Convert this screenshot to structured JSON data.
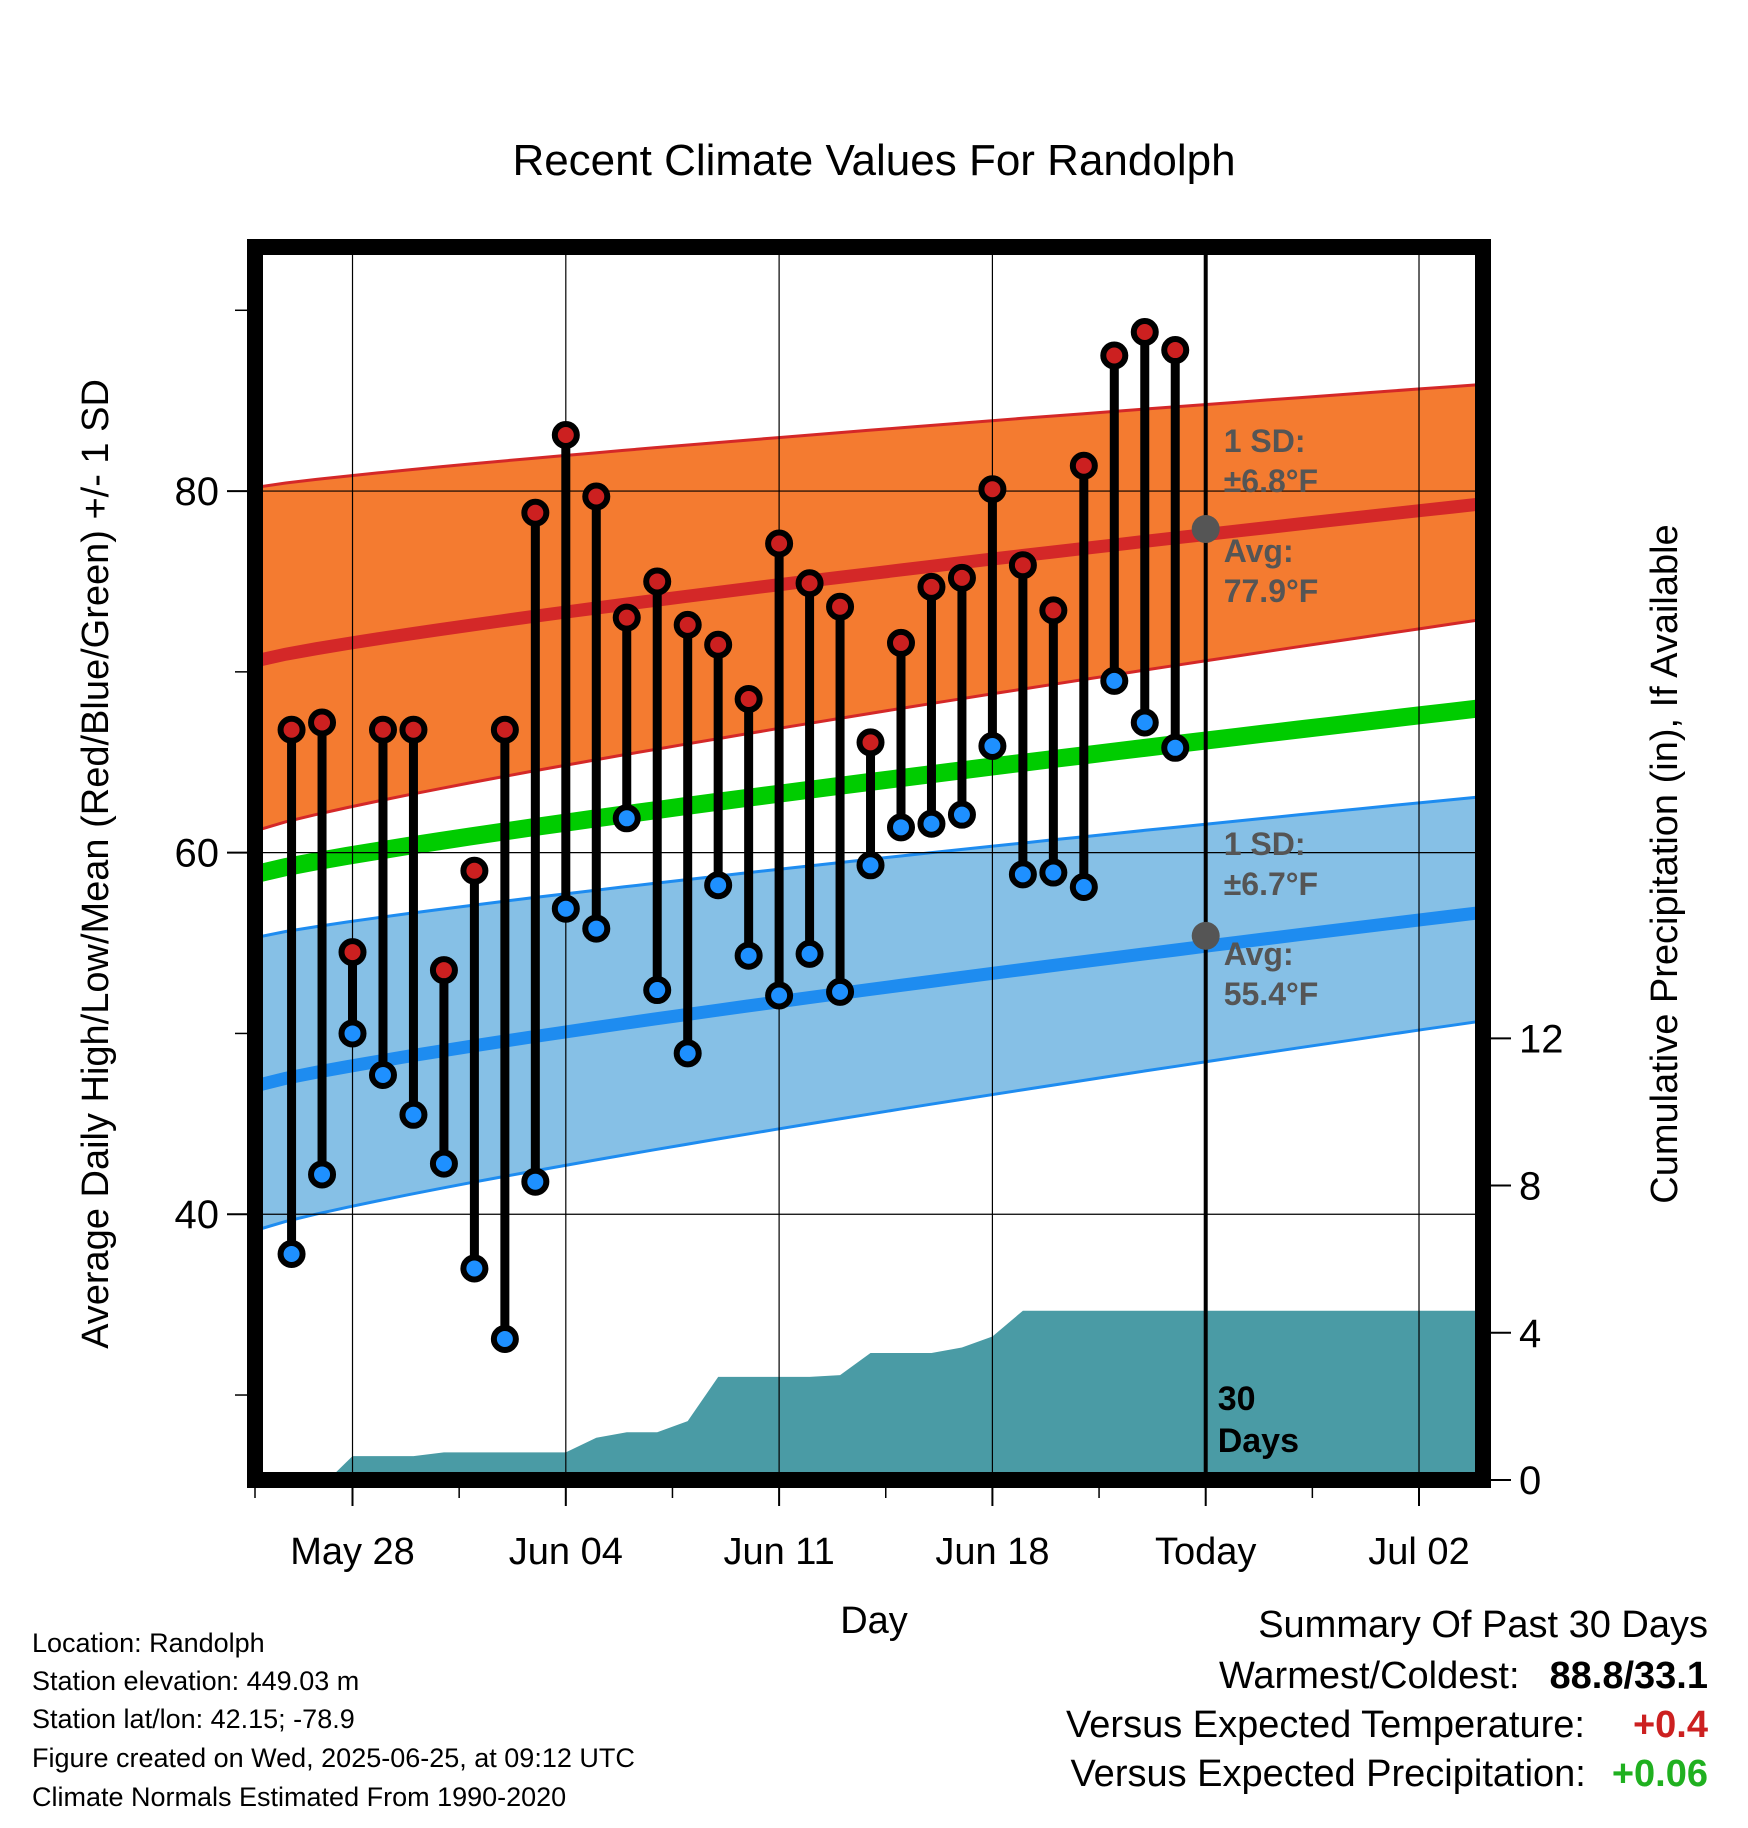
{
  "chart_data": {
    "type": "line",
    "title": "Recent Climate Values For Randolph",
    "xlabel": "Day",
    "ylabel": "Average Daily High/Low/Mean (Red/Blue/Green) +/- 1 SD",
    "y2label": "Cumulative Precipitation (in), If Available",
    "x_tick_labels": [
      "May 28",
      "Jun 04",
      "Jun 11",
      "Jun 18",
      "Today",
      "Jul 02"
    ],
    "x_tick_days": [
      2,
      9,
      16,
      23,
      30,
      37
    ],
    "y_ticks": [
      40,
      60,
      80
    ],
    "y2_ticks": [
      0,
      4,
      8,
      12
    ],
    "xlim_days": [
      -1.2,
      39.1
    ],
    "ylim": [
      25.3,
      93.5
    ],
    "y2lim": [
      0,
      33.5
    ],
    "today_day": 30,
    "today_label": [
      "30",
      "Days"
    ],
    "normals": {
      "days": [
        -1.2,
        39.1
      ],
      "high_avg": [
        70.6,
        79.3
      ],
      "high_sd_upper": [
        80.2,
        85.9
      ],
      "high_sd_lower": [
        61.2,
        72.9
      ],
      "low_avg": [
        47.1,
        56.7
      ],
      "low_sd_upper": [
        55.3,
        63.1
      ],
      "low_sd_lower": [
        39.1,
        50.7
      ],
      "mean_avg": [
        58.8,
        68.0
      ]
    },
    "annotations": {
      "high_sd": [
        "1 SD:",
        "±6.8°F"
      ],
      "high_avg": [
        "Avg:",
        "77.9°F"
      ],
      "high_avg_value": 77.9,
      "low_sd": [
        "1 SD:",
        "±6.7°F"
      ],
      "low_avg": [
        "Avg:",
        "55.4°F"
      ],
      "low_avg_value": 55.4
    },
    "series": [
      {
        "name": "High",
        "color": "#cc2020",
        "days": [
          0,
          1,
          2,
          3,
          4,
          5,
          6,
          7,
          8,
          9,
          10,
          11,
          12,
          13,
          14,
          15,
          16,
          17,
          18,
          19,
          20,
          21,
          22,
          23,
          24,
          25,
          26,
          27,
          28,
          29
        ],
        "values": [
          66.8,
          67.2,
          54.5,
          66.8,
          66.8,
          53.5,
          59.0,
          66.8,
          78.8,
          83.1,
          79.7,
          73.0,
          75.0,
          72.6,
          71.5,
          68.5,
          77.1,
          74.9,
          73.6,
          66.1,
          71.6,
          74.7,
          75.2,
          80.1,
          75.9,
          73.4,
          81.4,
          87.5,
          88.8,
          87.8
        ]
      },
      {
        "name": "Low",
        "color": "#1e90ff",
        "days": [
          0,
          1,
          2,
          3,
          4,
          5,
          6,
          7,
          8,
          9,
          10,
          11,
          12,
          13,
          14,
          15,
          16,
          17,
          18,
          19,
          20,
          21,
          22,
          23,
          24,
          25,
          26,
          27,
          28,
          29
        ],
        "values": [
          37.8,
          42.2,
          50.0,
          47.7,
          45.5,
          42.8,
          37.0,
          33.1,
          41.8,
          56.9,
          55.8,
          61.9,
          52.4,
          48.9,
          58.2,
          54.3,
          52.1,
          54.4,
          52.3,
          59.3,
          61.4,
          61.6,
          62.1,
          65.9,
          58.8,
          58.9,
          58.1,
          69.5,
          67.2,
          65.8
        ]
      }
    ],
    "precipitation": {
      "name": "Cumulative Precipitation",
      "color": "#4a9ba5",
      "days": [
        1.2,
        2.0,
        3.0,
        4.0,
        5.0,
        6.0,
        7.0,
        8.0,
        9.0,
        10.0,
        11.0,
        12.0,
        13.0,
        14.0,
        15.0,
        16.0,
        17.0,
        18.0,
        19.0,
        20.0,
        21.0,
        22.0,
        23.0,
        24.0,
        25.0,
        30.0,
        39.1
      ],
      "values": [
        0.0,
        0.65,
        0.65,
        0.65,
        0.75,
        0.75,
        0.75,
        0.75,
        0.75,
        1.15,
        1.3,
        1.3,
        1.6,
        2.8,
        2.8,
        2.8,
        2.8,
        2.85,
        3.45,
        3.45,
        3.45,
        3.6,
        3.9,
        4.6,
        4.6,
        4.6,
        4.6
      ]
    }
  },
  "footer": {
    "location": "Location: Randolph",
    "elevation": "Station elevation: 449.03 m",
    "latlon": "Station lat/lon: 42.15; -78.9",
    "created": "Figure created on Wed, 2025-06-25, at 09:12 UTC",
    "normals": "Climate Normals Estimated From 1990-2020"
  },
  "summary": {
    "title": "Summary Of Past 30 Days",
    "warm_cold_label": "Warmest/Coldest:",
    "warm_cold_value": "88.8/33.1",
    "temp_label": "Versus Expected Temperature:",
    "temp_value": "+0.4",
    "temp_color": "#cc2020",
    "precip_label": "Versus Expected Precipitation:",
    "precip_value": "+0.06",
    "precip_color": "#20b020"
  },
  "colors": {
    "high_band": "#f47b30",
    "high_line": "#d42828",
    "low_band": "#86c0e6",
    "low_line": "#1e8cf0",
    "mean_line": "#00cc00",
    "annotation": "#555555"
  }
}
